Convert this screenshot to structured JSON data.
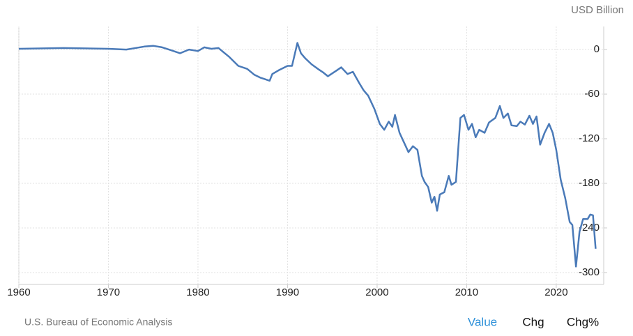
{
  "chart_data": {
    "type": "line",
    "unit": "USD Billion",
    "source": "U.S. Bureau of Economic Analysis",
    "controls": [
      "Value",
      "Chg",
      "Chg%"
    ],
    "xlim": [
      1960,
      2025.3
    ],
    "ylim": [
      -316,
      31
    ],
    "xticks": [
      1960,
      1970,
      1980,
      1990,
      2000,
      2010,
      2020
    ],
    "yticks": [
      0,
      -60,
      -120,
      -180,
      -240,
      -300
    ],
    "grid": true,
    "series": [
      {
        "color": "#4a7ab8",
        "x": [
          1960,
          1965,
          1970,
          1972,
          1974,
          1975,
          1976,
          1977,
          1978,
          1979,
          1980,
          1980.7,
          1981.5,
          1982.3,
          1982.8,
          1983.5,
          1984.5,
          1985.5,
          1986.3,
          1987,
          1988,
          1988.3,
          1989,
          1990,
          1990.5,
          1991.1,
          1991.5,
          1992,
          1992.7,
          1993.5,
          1994,
          1994.5,
          1995.5,
          1996,
          1996.7,
          1997.3,
          1998,
          1998.5,
          1999,
          1999.7,
          2000.3,
          2000.8,
          2001.3,
          2001.7,
          2002,
          2002.5,
          2003,
          2003.5,
          2004,
          2004.5,
          2005,
          2005.3,
          2005.7,
          2006.1,
          2006.4,
          2006.7,
          2007,
          2007.5,
          2008,
          2008.3,
          2008.8,
          2009.3,
          2009.7,
          2010.2,
          2010.6,
          2011,
          2011.4,
          2012,
          2012.5,
          2013.2,
          2013.7,
          2014.1,
          2014.6,
          2015,
          2015.6,
          2016,
          2016.5,
          2017,
          2017.4,
          2017.8,
          2018.2,
          2018.7,
          2019.2,
          2019.6,
          2020,
          2020.5,
          2021,
          2021.5,
          2021.8,
          2022.2,
          2022.6,
          2023,
          2023.5,
          2023.8,
          2024.1,
          2024.4
        ],
        "values": [
          1,
          2,
          1,
          0,
          4,
          5,
          3,
          -1,
          -5,
          0,
          -2,
          3,
          1,
          2,
          -3,
          -10,
          -22,
          -26,
          -34,
          -38,
          -42,
          -33,
          -28,
          -22,
          -22,
          9,
          -5,
          -12,
          -20,
          -27,
          -31,
          -36,
          -28,
          -24,
          -33,
          -30,
          -45,
          -55,
          -62,
          -80,
          -100,
          -108,
          -97,
          -104,
          -88,
          -112,
          -125,
          -138,
          -130,
          -135,
          -170,
          -178,
          -185,
          -206,
          -198,
          -217,
          -195,
          -192,
          -170,
          -182,
          -178,
          -92,
          -88,
          -108,
          -100,
          -118,
          -108,
          -112,
          -98,
          -92,
          -76,
          -92,
          -86,
          -102,
          -103,
          -97,
          -101,
          -89,
          -100,
          -90,
          -128,
          -112,
          -100,
          -112,
          -135,
          -175,
          -200,
          -232,
          -236,
          -292,
          -245,
          -228,
          -228,
          -222,
          -223,
          -268
        ]
      }
    ]
  }
}
